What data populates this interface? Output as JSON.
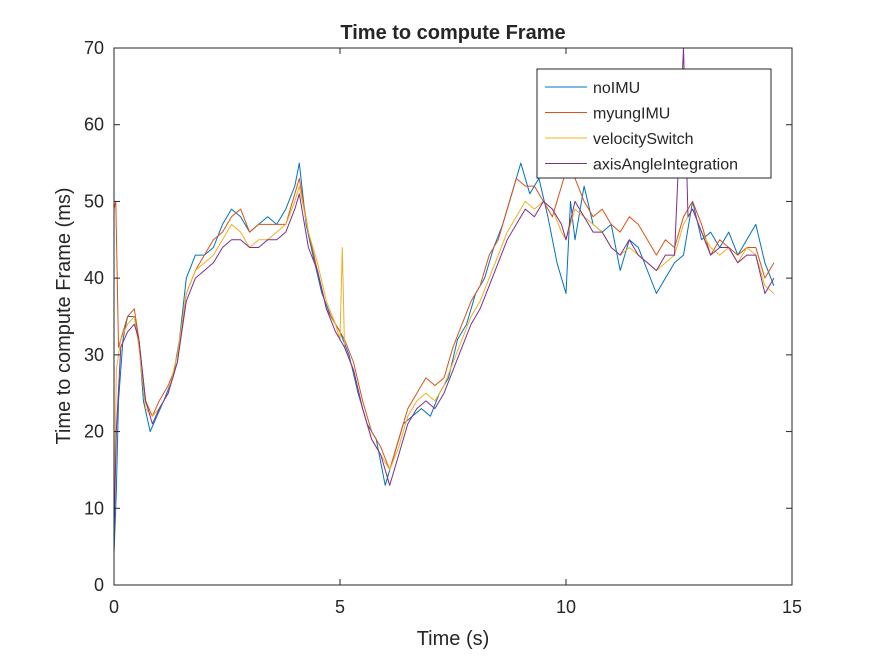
{
  "chart_data": {
    "type": "line",
    "title": "Time to compute Frame",
    "xlabel": "Time (s)",
    "ylabel": "Time to compute Frame (ms)",
    "xlim": [
      0,
      15
    ],
    "ylim": [
      0,
      70
    ],
    "xticks": [
      0,
      5,
      10,
      15
    ],
    "yticks": [
      0,
      10,
      20,
      30,
      40,
      50,
      60,
      70
    ],
    "legend_position": "top-right",
    "grid": false,
    "series": [
      {
        "name": "noIMU",
        "color": "#0072BD",
        "points": [
          [
            0,
            4
          ],
          [
            0.05,
            12
          ],
          [
            0.1,
            24
          ],
          [
            0.2,
            32
          ],
          [
            0.3,
            35
          ],
          [
            0.45,
            35
          ],
          [
            0.55,
            32
          ],
          [
            0.65,
            24
          ],
          [
            0.8,
            20
          ],
          [
            0.95,
            22
          ],
          [
            1.1,
            24
          ],
          [
            1.3,
            27
          ],
          [
            1.45,
            32
          ],
          [
            1.6,
            40
          ],
          [
            1.8,
            43
          ],
          [
            2.0,
            43
          ],
          [
            2.2,
            44
          ],
          [
            2.4,
            47
          ],
          [
            2.6,
            49
          ],
          [
            2.8,
            48
          ],
          [
            3.0,
            46
          ],
          [
            3.2,
            47
          ],
          [
            3.4,
            48
          ],
          [
            3.6,
            47
          ],
          [
            3.8,
            49
          ],
          [
            4.0,
            52
          ],
          [
            4.1,
            55
          ],
          [
            4.25,
            47
          ],
          [
            4.4,
            43
          ],
          [
            4.6,
            38
          ],
          [
            4.8,
            35
          ],
          [
            5.0,
            33
          ],
          [
            5.2,
            30
          ],
          [
            5.4,
            25
          ],
          [
            5.6,
            21
          ],
          [
            5.8,
            19
          ],
          [
            6.0,
            13
          ],
          [
            6.2,
            17
          ],
          [
            6.4,
            21
          ],
          [
            6.6,
            22
          ],
          [
            6.8,
            23
          ],
          [
            7.0,
            22
          ],
          [
            7.2,
            25
          ],
          [
            7.4,
            27
          ],
          [
            7.6,
            32
          ],
          [
            7.8,
            34
          ],
          [
            8.0,
            38
          ],
          [
            8.2,
            40
          ],
          [
            8.4,
            44
          ],
          [
            8.6,
            47
          ],
          [
            8.8,
            51
          ],
          [
            9.0,
            55
          ],
          [
            9.2,
            51
          ],
          [
            9.4,
            53
          ],
          [
            9.6,
            48
          ],
          [
            9.8,
            42
          ],
          [
            10.0,
            38
          ],
          [
            10.1,
            50
          ],
          [
            10.2,
            45
          ],
          [
            10.4,
            52
          ],
          [
            10.6,
            47
          ],
          [
            10.8,
            46
          ],
          [
            11.0,
            47
          ],
          [
            11.2,
            41
          ],
          [
            11.4,
            45
          ],
          [
            11.6,
            44
          ],
          [
            11.8,
            41
          ],
          [
            12.0,
            38
          ],
          [
            12.2,
            40
          ],
          [
            12.4,
            42
          ],
          [
            12.6,
            43
          ],
          [
            12.8,
            50
          ],
          [
            13.0,
            45
          ],
          [
            13.2,
            46
          ],
          [
            13.4,
            44
          ],
          [
            13.6,
            46
          ],
          [
            13.8,
            43
          ],
          [
            14.0,
            45
          ],
          [
            14.2,
            47
          ],
          [
            14.4,
            42
          ],
          [
            14.6,
            39
          ]
        ]
      },
      {
        "name": "myungIMU",
        "color": "#D95319",
        "points": [
          [
            0,
            49
          ],
          [
            0.04,
            50
          ],
          [
            0.1,
            31
          ],
          [
            0.2,
            33
          ],
          [
            0.3,
            35
          ],
          [
            0.45,
            36
          ],
          [
            0.55,
            32
          ],
          [
            0.7,
            24
          ],
          [
            0.85,
            22
          ],
          [
            1.0,
            24
          ],
          [
            1.2,
            26
          ],
          [
            1.4,
            29
          ],
          [
            1.6,
            38
          ],
          [
            1.8,
            41
          ],
          [
            2.0,
            43
          ],
          [
            2.2,
            45
          ],
          [
            2.4,
            46
          ],
          [
            2.6,
            48
          ],
          [
            2.8,
            49
          ],
          [
            3.0,
            46
          ],
          [
            3.2,
            47
          ],
          [
            3.4,
            47
          ],
          [
            3.6,
            47
          ],
          [
            3.8,
            47
          ],
          [
            4.0,
            51
          ],
          [
            4.1,
            53
          ],
          [
            4.3,
            46
          ],
          [
            4.5,
            41
          ],
          [
            4.7,
            36
          ],
          [
            4.9,
            34
          ],
          [
            5.1,
            32
          ],
          [
            5.3,
            29
          ],
          [
            5.5,
            24
          ],
          [
            5.7,
            20
          ],
          [
            5.9,
            18
          ],
          [
            6.1,
            15
          ],
          [
            6.3,
            19
          ],
          [
            6.5,
            23
          ],
          [
            6.7,
            25
          ],
          [
            6.9,
            27
          ],
          [
            7.1,
            26
          ],
          [
            7.3,
            27
          ],
          [
            7.5,
            31
          ],
          [
            7.7,
            34
          ],
          [
            7.9,
            37
          ],
          [
            8.1,
            39
          ],
          [
            8.3,
            43
          ],
          [
            8.5,
            45
          ],
          [
            8.7,
            49
          ],
          [
            8.9,
            53
          ],
          [
            9.1,
            52
          ],
          [
            9.3,
            52
          ],
          [
            9.5,
            50
          ],
          [
            9.7,
            48
          ],
          [
            9.9,
            52
          ],
          [
            10.0,
            54
          ],
          [
            10.2,
            53
          ],
          [
            10.4,
            50
          ],
          [
            10.6,
            48
          ],
          [
            10.8,
            49
          ],
          [
            11.0,
            47
          ],
          [
            11.2,
            46
          ],
          [
            11.4,
            48
          ],
          [
            11.6,
            47
          ],
          [
            11.8,
            45
          ],
          [
            12.0,
            43
          ],
          [
            12.2,
            45
          ],
          [
            12.4,
            44
          ],
          [
            12.6,
            48
          ],
          [
            12.8,
            50
          ],
          [
            13.0,
            47
          ],
          [
            13.2,
            43
          ],
          [
            13.4,
            45
          ],
          [
            13.6,
            44
          ],
          [
            13.8,
            43
          ],
          [
            14.0,
            44
          ],
          [
            14.2,
            44
          ],
          [
            14.4,
            40
          ],
          [
            14.6,
            42
          ]
        ]
      },
      {
        "name": "velocitySwitch",
        "color": "#EDB120",
        "points": [
          [
            0,
            5
          ],
          [
            0.05,
            28
          ],
          [
            0.15,
            32
          ],
          [
            0.3,
            34
          ],
          [
            0.45,
            35
          ],
          [
            0.55,
            31
          ],
          [
            0.7,
            23
          ],
          [
            0.85,
            22
          ],
          [
            1.0,
            23
          ],
          [
            1.2,
            25
          ],
          [
            1.4,
            30
          ],
          [
            1.6,
            38
          ],
          [
            1.8,
            41
          ],
          [
            2.0,
            42
          ],
          [
            2.2,
            43
          ],
          [
            2.4,
            45
          ],
          [
            2.6,
            47
          ],
          [
            2.8,
            46
          ],
          [
            3.0,
            44
          ],
          [
            3.2,
            45
          ],
          [
            3.4,
            45
          ],
          [
            3.6,
            46
          ],
          [
            3.8,
            47
          ],
          [
            4.0,
            50
          ],
          [
            4.1,
            52
          ],
          [
            4.3,
            46
          ],
          [
            4.5,
            42
          ],
          [
            4.7,
            37
          ],
          [
            4.9,
            34
          ],
          [
            5.0,
            32
          ],
          [
            5.05,
            44
          ],
          [
            5.1,
            31
          ],
          [
            5.3,
            28
          ],
          [
            5.5,
            23
          ],
          [
            5.7,
            19
          ],
          [
            5.9,
            17
          ],
          [
            6.1,
            15
          ],
          [
            6.3,
            18
          ],
          [
            6.5,
            22
          ],
          [
            6.7,
            24
          ],
          [
            6.9,
            25
          ],
          [
            7.1,
            24
          ],
          [
            7.3,
            26
          ],
          [
            7.5,
            29
          ],
          [
            7.7,
            32
          ],
          [
            7.9,
            35
          ],
          [
            8.1,
            37
          ],
          [
            8.3,
            40
          ],
          [
            8.5,
            43
          ],
          [
            8.7,
            46
          ],
          [
            8.9,
            48
          ],
          [
            9.1,
            50
          ],
          [
            9.3,
            49
          ],
          [
            9.5,
            50
          ],
          [
            9.7,
            49
          ],
          [
            9.9,
            46
          ],
          [
            10.0,
            45
          ],
          [
            10.2,
            49
          ],
          [
            10.4,
            48
          ],
          [
            10.6,
            47
          ],
          [
            10.8,
            46
          ],
          [
            11.0,
            44
          ],
          [
            11.2,
            43
          ],
          [
            11.4,
            44
          ],
          [
            11.6,
            43
          ],
          [
            11.8,
            42
          ],
          [
            12.0,
            41
          ],
          [
            12.2,
            42
          ],
          [
            12.4,
            43
          ],
          [
            12.6,
            47
          ],
          [
            12.8,
            49
          ],
          [
            13.0,
            46
          ],
          [
            13.2,
            44
          ],
          [
            13.4,
            43
          ],
          [
            13.6,
            44
          ],
          [
            13.8,
            42
          ],
          [
            14.0,
            44
          ],
          [
            14.2,
            43
          ],
          [
            14.4,
            39
          ],
          [
            14.6,
            38
          ]
        ]
      },
      {
        "name": "axisAngleIntegration",
        "color": "#7E2F8E",
        "points": [
          [
            0,
            6
          ],
          [
            0.05,
            20
          ],
          [
            0.15,
            31
          ],
          [
            0.3,
            33
          ],
          [
            0.45,
            34
          ],
          [
            0.55,
            32
          ],
          [
            0.7,
            24
          ],
          [
            0.85,
            21
          ],
          [
            1.0,
            23
          ],
          [
            1.2,
            25
          ],
          [
            1.4,
            29
          ],
          [
            1.6,
            37
          ],
          [
            1.8,
            40
          ],
          [
            2.0,
            41
          ],
          [
            2.2,
            42
          ],
          [
            2.4,
            44
          ],
          [
            2.6,
            45
          ],
          [
            2.8,
            45
          ],
          [
            3.0,
            44
          ],
          [
            3.2,
            44
          ],
          [
            3.4,
            45
          ],
          [
            3.6,
            45
          ],
          [
            3.8,
            46
          ],
          [
            4.0,
            49
          ],
          [
            4.1,
            51
          ],
          [
            4.3,
            44
          ],
          [
            4.5,
            41
          ],
          [
            4.7,
            36
          ],
          [
            4.9,
            33
          ],
          [
            5.1,
            31
          ],
          [
            5.3,
            28
          ],
          [
            5.5,
            23
          ],
          [
            5.7,
            19
          ],
          [
            5.9,
            17
          ],
          [
            6.1,
            13
          ],
          [
            6.3,
            17
          ],
          [
            6.5,
            21
          ],
          [
            6.7,
            23
          ],
          [
            6.9,
            24
          ],
          [
            7.1,
            23
          ],
          [
            7.3,
            25
          ],
          [
            7.5,
            28
          ],
          [
            7.7,
            31
          ],
          [
            7.9,
            34
          ],
          [
            8.1,
            36
          ],
          [
            8.3,
            39
          ],
          [
            8.5,
            42
          ],
          [
            8.7,
            45
          ],
          [
            8.9,
            47
          ],
          [
            9.1,
            49
          ],
          [
            9.3,
            48
          ],
          [
            9.5,
            50
          ],
          [
            9.7,
            49
          ],
          [
            9.9,
            47
          ],
          [
            10.0,
            45
          ],
          [
            10.2,
            50
          ],
          [
            10.4,
            48
          ],
          [
            10.6,
            46
          ],
          [
            10.8,
            46
          ],
          [
            11.0,
            44
          ],
          [
            11.2,
            43
          ],
          [
            11.4,
            45
          ],
          [
            11.6,
            43
          ],
          [
            11.8,
            42
          ],
          [
            12.0,
            41
          ],
          [
            12.2,
            43
          ],
          [
            12.4,
            43
          ],
          [
            12.6,
            70
          ],
          [
            12.7,
            48
          ],
          [
            12.8,
            49
          ],
          [
            13.0,
            46
          ],
          [
            13.2,
            43
          ],
          [
            13.4,
            44
          ],
          [
            13.6,
            44
          ],
          [
            13.8,
            42
          ],
          [
            14.0,
            43
          ],
          [
            14.2,
            43
          ],
          [
            14.4,
            38
          ],
          [
            14.6,
            40
          ]
        ]
      }
    ]
  }
}
